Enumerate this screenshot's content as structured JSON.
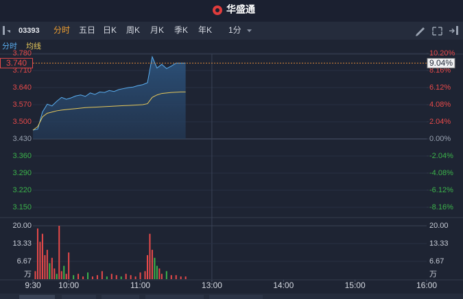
{
  "header": {
    "title": "华盛通"
  },
  "toolbar": {
    "code": "03393",
    "tabs": [
      "分时",
      "五日",
      "日K",
      "周K",
      "月K",
      "季K",
      "年K"
    ],
    "active": 0,
    "interval": "1分"
  },
  "chart_data": {
    "type": "line",
    "x": [
      0,
      4,
      8,
      12,
      16,
      20,
      24,
      28,
      32,
      36,
      40,
      44,
      48,
      52,
      56,
      60,
      64,
      68,
      72,
      76,
      80,
      84,
      88,
      92,
      96,
      100,
      104,
      108,
      112,
      116,
      120,
      124,
      128
    ],
    "xlim": [
      0,
      330
    ],
    "xticks": [
      {
        "value": 0,
        "label": "9:30"
      },
      {
        "value": 30,
        "label": "10:00"
      },
      {
        "value": 90,
        "label": "11:00"
      },
      {
        "value": 150,
        "label": "13:00"
      },
      {
        "value": 210,
        "label": "14:00"
      },
      {
        "value": 270,
        "label": "15:00"
      },
      {
        "value": 330,
        "label": "16:00"
      }
    ],
    "ylim": [
      3.108,
      3.78
    ],
    "yticks": [
      {
        "value": 3.78,
        "label": "3.780"
      },
      {
        "value": 3.71,
        "label": "3.710"
      },
      {
        "value": 3.64,
        "label": "3.640"
      },
      {
        "value": 3.57,
        "label": "3.570"
      },
      {
        "value": 3.5,
        "label": "3.500"
      },
      {
        "value": 3.43,
        "label": "3.430"
      },
      {
        "value": 3.36,
        "label": "3.360"
      },
      {
        "value": 3.29,
        "label": "3.290"
      },
      {
        "value": 3.22,
        "label": "3.220"
      },
      {
        "value": 3.15,
        "label": "3.150"
      }
    ],
    "y2lim": [
      -9.39,
      10.2
    ],
    "y2ticks": [
      {
        "value": 10.2,
        "label": "10.20%"
      },
      {
        "value": 8.16,
        "label": "8.16%"
      },
      {
        "value": 6.12,
        "label": "6.12%"
      },
      {
        "value": 4.08,
        "label": "4.08%"
      },
      {
        "value": 2.04,
        "label": "2.04%"
      },
      {
        "value": 0,
        "label": "0.00%"
      },
      {
        "value": -2.04,
        "label": "-2.04%"
      },
      {
        "value": -4.08,
        "label": "-4.08%"
      },
      {
        "value": -6.12,
        "label": "-6.12%"
      },
      {
        "value": -8.16,
        "label": "-8.16%"
      }
    ],
    "series": [
      {
        "name": "分时",
        "color": "#5aaef0",
        "values": [
          3.466,
          3.47,
          3.54,
          3.572,
          3.565,
          3.584,
          3.6,
          3.592,
          3.598,
          3.606,
          3.61,
          3.604,
          3.618,
          3.612,
          3.622,
          3.62,
          3.628,
          3.624,
          3.632,
          3.636,
          3.64,
          3.642,
          3.648,
          3.652,
          3.66,
          3.766,
          3.72,
          3.735,
          3.718,
          3.728,
          3.74,
          3.74,
          3.74
        ]
      },
      {
        "name": "均线",
        "color": "#e8c95a",
        "values": [
          3.466,
          3.48,
          3.52,
          3.535,
          3.54,
          3.545,
          3.548,
          3.55,
          3.552,
          3.554,
          3.556,
          3.558,
          3.559,
          3.56,
          3.561,
          3.562,
          3.563,
          3.564,
          3.565,
          3.566,
          3.567,
          3.568,
          3.569,
          3.57,
          3.574,
          3.6,
          3.61,
          3.616,
          3.618,
          3.62,
          3.621,
          3.622,
          3.622
        ]
      }
    ],
    "last_price": {
      "value": 3.74,
      "label": "3.740"
    },
    "last_change": {
      "value": 9.04,
      "label": "9.04%"
    },
    "volume": {
      "unit": "万",
      "ylim": [
        0,
        20
      ],
      "yticks": [
        {
          "value": 20,
          "label": "20.00"
        },
        13.33,
        6.67
      ],
      "x": [
        2,
        4,
        6,
        8,
        10,
        12,
        14,
        16,
        18,
        20,
        22,
        24,
        26,
        28,
        30,
        34,
        38,
        42,
        46,
        50,
        54,
        58,
        62,
        66,
        70,
        74,
        78,
        82,
        86,
        90,
        94,
        96,
        98,
        100,
        102,
        104,
        106,
        108,
        112,
        116,
        120,
        124,
        128
      ],
      "values": [
        3,
        19,
        14,
        17,
        9,
        11,
        6,
        8,
        4,
        2,
        20,
        3,
        5,
        2,
        10,
        1.5,
        2,
        1,
        2.5,
        1,
        1.5,
        3,
        1,
        2,
        1.5,
        1,
        2,
        1.5,
        1,
        2.5,
        3,
        9,
        17,
        11,
        8,
        5,
        4,
        2,
        3,
        1.5,
        1.5,
        1,
        1
      ],
      "colors": [
        "#e84a4a",
        "#e84a4a",
        "#e84a4a",
        "#e84a4a",
        "#e84a4a",
        "#e84a4a",
        "#3cb44b",
        "#e84a4a",
        "#e84a4a",
        "#3cb44b",
        "#e84a4a",
        "#e84a4a",
        "#3cb44b",
        "#e84a4a",
        "#e84a4a",
        "#3cb44b",
        "#e84a4a",
        "#e84a4a",
        "#3cb44b",
        "#e84a4a",
        "#e84a4a",
        "#e84a4a",
        "#3cb44b",
        "#e84a4a",
        "#e84a4a",
        "#3cb44b",
        "#e84a4a",
        "#e84a4a",
        "#e84a4a",
        "#e84a4a",
        "#e84a4a",
        "#e84a4a",
        "#e84a4a",
        "#e84a4a",
        "#3cb44b",
        "#3cb44b",
        "#e84a4a",
        "#e84a4a",
        "#3cb44b",
        "#e84a4a",
        "#e84a4a",
        "#e84a4a",
        "#e84a4a"
      ]
    }
  }
}
